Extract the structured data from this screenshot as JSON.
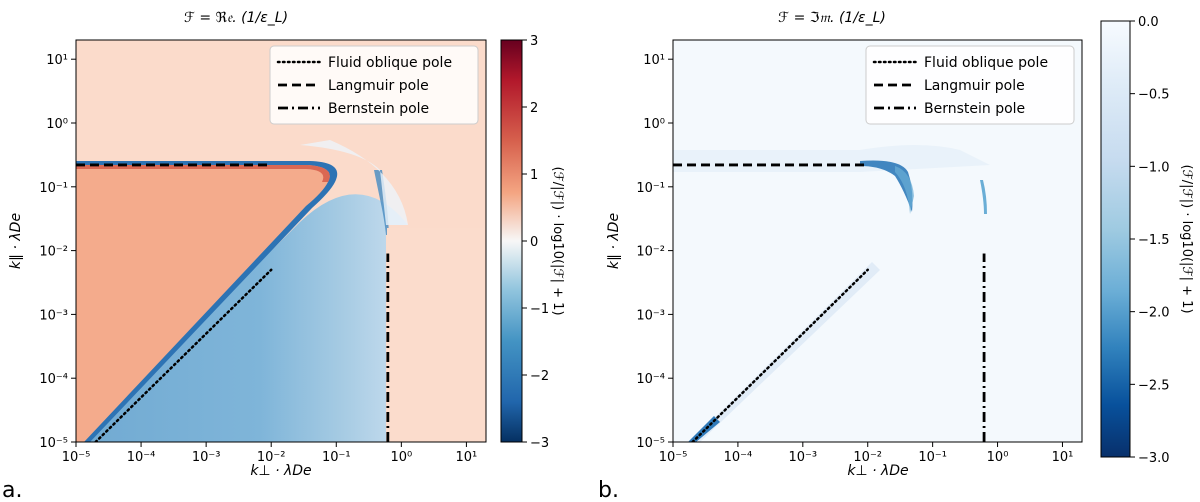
{
  "chart_data": [
    {
      "type": "heatmap",
      "panel_label": "a.",
      "title": "ℱ = ℜ𝔢. (1/ε_L)",
      "xlabel": "k⊥ · λDe",
      "ylabel": "k∥ · λDe",
      "xscale": "log",
      "yscale": "log",
      "xlim": [
        1e-05,
        20
      ],
      "ylim": [
        1e-05,
        20
      ],
      "x_ticks": [
        {
          "value": 1e-05,
          "label": "10⁻⁵"
        },
        {
          "value": 0.0001,
          "label": "10⁻⁴"
        },
        {
          "value": 0.001,
          "label": "10⁻³"
        },
        {
          "value": 0.01,
          "label": "10⁻²"
        },
        {
          "value": 0.1,
          "label": "10⁻¹"
        },
        {
          "value": 1,
          "label": "10⁰"
        },
        {
          "value": 10,
          "label": "10¹"
        }
      ],
      "y_ticks": [
        {
          "value": 1e-05,
          "label": "10⁻⁵"
        },
        {
          "value": 0.0001,
          "label": "10⁻⁴"
        },
        {
          "value": 0.001,
          "label": "10⁻³"
        },
        {
          "value": 0.01,
          "label": "10⁻²"
        },
        {
          "value": 0.1,
          "label": "10⁻¹"
        },
        {
          "value": 1,
          "label": "10⁰"
        },
        {
          "value": 10,
          "label": "10¹"
        }
      ],
      "colorbar": {
        "colormap": "RdBu_r",
        "vmin": -3,
        "vmax": 3,
        "ticks": [
          {
            "value": 3,
            "label": "3"
          },
          {
            "value": 2,
            "label": "2"
          },
          {
            "value": 1,
            "label": "1"
          },
          {
            "value": 0,
            "label": "0"
          },
          {
            "value": -1,
            "label": "−1"
          },
          {
            "value": -2,
            "label": "−2"
          },
          {
            "value": -3,
            "label": "−3"
          }
        ],
        "label": "(ℱ/|ℱ|) · log10(|ℱ| + 1)"
      },
      "legend": {
        "position": "top-right",
        "entries": [
          {
            "label": "Fluid oblique pole",
            "style": "dotted"
          },
          {
            "label": "Langmuir pole",
            "style": "dashed"
          },
          {
            "label": "Bernstein pole",
            "style": "dashdot"
          }
        ]
      },
      "regions": [
        {
          "name": "background",
          "value": 0.3
        },
        {
          "name": "wedge-interior",
          "value": 0.95
        },
        {
          "name": "middle-band",
          "value": -1.4
        },
        {
          "name": "right-strip",
          "value": 0.35
        }
      ],
      "lines": [
        {
          "name": "fluid-oblique-pole",
          "style": "dotted",
          "x": [
            2e-05,
            0.01
          ],
          "y": [
            1e-05,
            0.005
          ]
        },
        {
          "name": "langmuir-pole",
          "style": "dashed",
          "x": [
            1e-05,
            0.01
          ],
          "y": [
            0.22,
            0.22
          ]
        },
        {
          "name": "bernstein-pole",
          "style": "dashdot",
          "x": [
            0.62,
            0.62
          ],
          "y": [
            1e-05,
            0.009
          ]
        }
      ]
    },
    {
      "type": "heatmap",
      "panel_label": "b.",
      "title": "ℱ = ℑ𝔪. (1/ε_L)",
      "xlabel": "k⊥ · λDe",
      "ylabel": "k∥ · λDe",
      "xscale": "log",
      "yscale": "log",
      "xlim": [
        1e-05,
        20
      ],
      "ylim": [
        1e-05,
        20
      ],
      "x_ticks": [
        {
          "value": 1e-05,
          "label": "10⁻⁵"
        },
        {
          "value": 0.0001,
          "label": "10⁻⁴"
        },
        {
          "value": 0.001,
          "label": "10⁻³"
        },
        {
          "value": 0.01,
          "label": "10⁻²"
        },
        {
          "value": 0.1,
          "label": "10⁻¹"
        },
        {
          "value": 1,
          "label": "10⁰"
        },
        {
          "value": 10,
          "label": "10¹"
        }
      ],
      "y_ticks": [
        {
          "value": 1e-05,
          "label": "10⁻⁵"
        },
        {
          "value": 0.0001,
          "label": "10⁻⁴"
        },
        {
          "value": 0.001,
          "label": "10⁻³"
        },
        {
          "value": 0.01,
          "label": "10⁻²"
        },
        {
          "value": 0.1,
          "label": "10⁻¹"
        },
        {
          "value": 1,
          "label": "10⁰"
        },
        {
          "value": 10,
          "label": "10¹"
        }
      ],
      "colorbar": {
        "colormap": "Blues_r",
        "vmin": -3,
        "vmax": 0,
        "ticks": [
          {
            "value": 0,
            "label": "0.0"
          },
          {
            "value": -0.5,
            "label": "−0.5"
          },
          {
            "value": -1,
            "label": "−1.0"
          },
          {
            "value": -1.5,
            "label": "−1.5"
          },
          {
            "value": -2,
            "label": "−2.0"
          },
          {
            "value": -2.5,
            "label": "−2.5"
          },
          {
            "value": -3,
            "label": "−3.0"
          }
        ],
        "label": "(ℱ/|ℱ|) · log10(|ℱ| + 1)"
      },
      "legend": {
        "position": "top-right",
        "entries": [
          {
            "label": "Fluid oblique pole",
            "style": "dotted"
          },
          {
            "label": "Langmuir pole",
            "style": "dashed"
          },
          {
            "label": "Bernstein pole",
            "style": "dashdot"
          }
        ]
      },
      "regions": [
        {
          "name": "background",
          "value": -0.05
        }
      ],
      "lines": [
        {
          "name": "fluid-oblique-pole",
          "style": "dotted",
          "x": [
            2e-05,
            0.01
          ],
          "y": [
            1e-05,
            0.005
          ]
        },
        {
          "name": "langmuir-pole",
          "style": "dashed",
          "x": [
            1e-05,
            0.01
          ],
          "y": [
            0.22,
            0.22
          ]
        },
        {
          "name": "bernstein-pole",
          "style": "dashdot",
          "x": [
            0.62,
            0.62
          ],
          "y": [
            1e-05,
            0.009
          ]
        }
      ]
    }
  ]
}
